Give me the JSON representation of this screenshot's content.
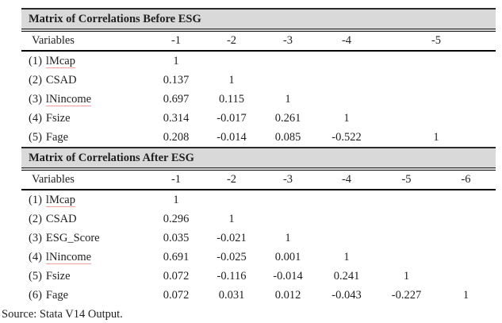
{
  "colors": {
    "title_band_bg": "#d9d9d9",
    "rule": "#1a1a1a",
    "text": "#1f1f1f",
    "spellcheck_underline": "#f89c9c"
  },
  "source_note": "Source: Stata V14 Output.",
  "tables": [
    {
      "title": "Matrix of Correlations Before ESG",
      "header": {
        "label": "Variables",
        "cols": [
          "-1",
          "-2",
          "-3",
          "-4",
          "-5"
        ]
      },
      "rows": [
        {
          "prefix": "(1)",
          "name": "lMcap",
          "values": [
            "1",
            "",
            "",
            "",
            ""
          ]
        },
        {
          "prefix": "(2)",
          "name": "CSAD",
          "values": [
            "0.137",
            "1",
            "",
            "",
            ""
          ]
        },
        {
          "prefix": "(3)",
          "name": "lNincome",
          "values": [
            "0.697",
            "0.115",
            "1",
            "",
            ""
          ]
        },
        {
          "prefix": "(4)",
          "name": "Fsize",
          "values": [
            "0.314",
            "-0.017",
            "0.261",
            "1",
            ""
          ]
        },
        {
          "prefix": "(5)",
          "name": "Fage",
          "values": [
            "0.208",
            "-0.014",
            "0.085",
            "-0.522",
            "1"
          ]
        }
      ]
    },
    {
      "title": "Matrix of Correlations After ESG",
      "header": {
        "label": "Variables",
        "cols": [
          "-1",
          "-2",
          "-3",
          "-4",
          "-5",
          "-6"
        ]
      },
      "rows": [
        {
          "prefix": "(1)",
          "name": "lMcap",
          "values": [
            "1",
            "",
            "",
            "",
            "",
            ""
          ]
        },
        {
          "prefix": "(2)",
          "name": "CSAD",
          "values": [
            "0.296",
            "1",
            "",
            "",
            "",
            ""
          ]
        },
        {
          "prefix": "(3)",
          "name": "ESG_Score",
          "values": [
            "0.035",
            "-0.021",
            "1",
            "",
            "",
            ""
          ]
        },
        {
          "prefix": "(4)",
          "name": "lNincome",
          "values": [
            "0.691",
            "-0.025",
            "0.001",
            "1",
            "",
            ""
          ]
        },
        {
          "prefix": "(5)",
          "name": "Fsize",
          "values": [
            "0.072",
            "-0.116",
            "-0.014",
            "0.241",
            "1",
            ""
          ]
        },
        {
          "prefix": "(6)",
          "name": "Fage",
          "values": [
            "0.072",
            "0.031",
            "0.012",
            "-0.043",
            "-0.227",
            "1"
          ]
        }
      ]
    }
  ]
}
